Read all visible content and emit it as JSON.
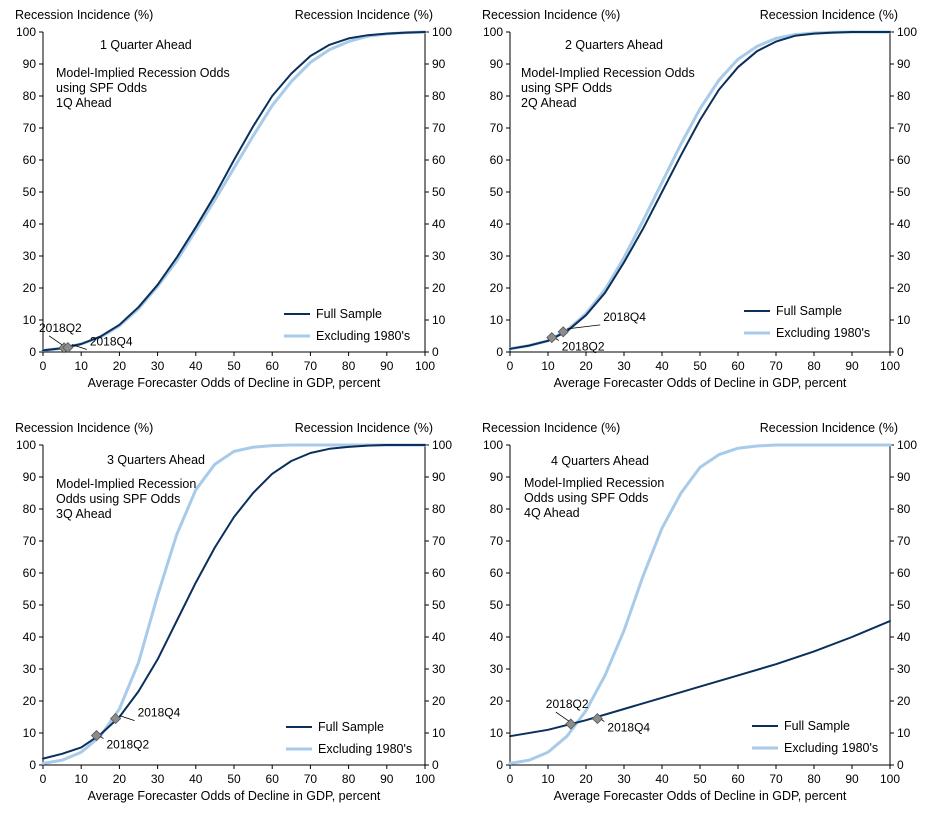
{
  "series_colors": {
    "full": "#0b2f5b",
    "excl": "#a7cbe9",
    "marker": "#8c8c8c"
  },
  "chart_data": [
    {
      "type": "line",
      "panel_title": "1 Quarter Ahead",
      "annotation": [
        "Model-Implied Recession Odds",
        "using SPF Odds",
        "1Q Ahead"
      ],
      "ylabel_left": "Recession Incidence  (%)",
      "ylabel_right": "Recession Incidence  (%)",
      "xlabel": "Average  Forecaster Odds of Decline in GDP, percent",
      "xlim": [
        0,
        100
      ],
      "ylim": [
        0,
        100
      ],
      "xticks": [
        "0",
        "10",
        "20",
        "30",
        "40",
        "50",
        "60",
        "70",
        "80",
        "90",
        "100"
      ],
      "yticks": [
        "0",
        "10",
        "20",
        "30",
        "40",
        "50",
        "60",
        "70",
        "80",
        "90",
        "100"
      ],
      "legend": {
        "position": "lower-right",
        "full": "Full Sample",
        "excl": "Excluding 1980's"
      },
      "series": [
        {
          "name": "Full Sample",
          "key": "full",
          "x": [
            0,
            5,
            10,
            15,
            20,
            25,
            30,
            35,
            40,
            45,
            50,
            55,
            60,
            65,
            70,
            75,
            80,
            85,
            90,
            95,
            100
          ],
          "y": [
            0.5,
            1.2,
            2.5,
            4.8,
            8.5,
            14,
            21,
            29.5,
            39,
            49,
            60,
            70.5,
            80,
            87,
            92.5,
            96,
            98,
            99,
            99.5,
            99.8,
            100
          ]
        },
        {
          "name": "Excluding 1980's",
          "key": "excl",
          "x": [
            0,
            5,
            10,
            15,
            20,
            25,
            30,
            35,
            40,
            45,
            50,
            55,
            60,
            65,
            70,
            75,
            80,
            85,
            90,
            95,
            100
          ],
          "y": [
            0.5,
            1.2,
            2.5,
            4.6,
            8.2,
            13.5,
            20.5,
            28.5,
            38,
            47.5,
            57.5,
            67.5,
            77,
            84.5,
            90.5,
            94.5,
            97,
            98.7,
            99.4,
            99.8,
            100
          ]
        }
      ],
      "markers": [
        {
          "label": "2018Q2",
          "x": 5.5,
          "y": 1.3,
          "label_pos": "upper-left"
        },
        {
          "label": "2018Q4",
          "x": 6.5,
          "y": 1.4,
          "label_pos": "right"
        }
      ]
    },
    {
      "type": "line",
      "panel_title": "2 Quarters  Ahead",
      "annotation": [
        "Model-Implied Recession Odds",
        "using SPF Odds",
        "2Q Ahead"
      ],
      "ylabel_left": "Recession Incidence  (%)",
      "ylabel_right": "Recession Incidence  (%)",
      "xlabel": "Average  Forecaster Odds of Decline in GDP, percent",
      "xlim": [
        0,
        100
      ],
      "ylim": [
        0,
        100
      ],
      "xticks": [
        "0",
        "10",
        "20",
        "30",
        "40",
        "50",
        "60",
        "70",
        "80",
        "90",
        "100"
      ],
      "yticks": [
        "0",
        "10",
        "20",
        "30",
        "40",
        "50",
        "60",
        "70",
        "80",
        "90",
        "100"
      ],
      "legend": {
        "position": "lower-right",
        "full": "Full Sample",
        "excl": "Excluding 1980's"
      },
      "series": [
        {
          "name": "Full Sample",
          "key": "full",
          "x": [
            0,
            5,
            10,
            15,
            20,
            25,
            30,
            35,
            40,
            45,
            50,
            55,
            60,
            65,
            70,
            75,
            80,
            85,
            90,
            95,
            100
          ],
          "y": [
            1,
            2,
            3.5,
            6.5,
            11.5,
            18.5,
            28,
            38.5,
            50,
            61.5,
            72.5,
            82,
            89,
            94,
            97,
            98.8,
            99.5,
            99.8,
            100,
            100,
            100
          ]
        },
        {
          "name": "Excluding 1980's",
          "key": "excl",
          "x": [
            0,
            5,
            10,
            15,
            20,
            25,
            30,
            35,
            40,
            45,
            50,
            55,
            60,
            65,
            70,
            75,
            80,
            85,
            90,
            95,
            100
          ],
          "y": [
            1,
            2,
            3.5,
            6.8,
            12,
            19.5,
            29.5,
            41,
            53,
            65,
            76,
            85,
            91.5,
            95.5,
            98,
            99.2,
            99.7,
            99.9,
            100,
            100,
            100
          ]
        }
      ],
      "markers": [
        {
          "label": "2018Q4",
          "x": 14,
          "y": 6.3,
          "label_pos": "upper-right"
        },
        {
          "label": "2018Q2",
          "x": 11,
          "y": 4.5,
          "label_pos": "lower-right"
        }
      ]
    },
    {
      "type": "line",
      "panel_title": "3 Quarters  Ahead",
      "annotation": [
        "Model-Implied Recession",
        "Odds using SPF Odds",
        "3Q Ahead"
      ],
      "ylabel_left": "Recession Incidence  (%)",
      "ylabel_right": "Recession Incidence  (%)",
      "xlabel": "Average  Forecaster Odds of Decline in GDP, percent",
      "xlim": [
        0,
        100
      ],
      "ylim": [
        0,
        100
      ],
      "xticks": [
        "0",
        "10",
        "20",
        "30",
        "40",
        "50",
        "60",
        "70",
        "80",
        "90",
        "100"
      ],
      "yticks": [
        "0",
        "10",
        "20",
        "30",
        "40",
        "50",
        "60",
        "70",
        "80",
        "90",
        "100"
      ],
      "legend": {
        "position": "lower-right",
        "full": "Full Sample",
        "excl": "Excluding 1980's"
      },
      "series": [
        {
          "name": "Full Sample",
          "key": "full",
          "x": [
            0,
            5,
            10,
            15,
            20,
            25,
            30,
            35,
            40,
            45,
            50,
            55,
            60,
            65,
            70,
            75,
            80,
            85,
            90,
            95,
            100
          ],
          "y": [
            2,
            3.5,
            5.5,
            9.5,
            15,
            23,
            33,
            45,
            57,
            68,
            77.5,
            85,
            91,
            95,
            97.5,
            98.8,
            99.4,
            99.8,
            100,
            100,
            100
          ]
        },
        {
          "name": "Excluding 1980's",
          "key": "excl",
          "x": [
            0,
            5,
            10,
            15,
            20,
            25,
            30,
            35,
            40,
            45,
            50,
            55,
            60,
            65,
            70,
            75,
            80,
            85,
            90,
            95,
            100
          ],
          "y": [
            0.5,
            1.5,
            4,
            9,
            17.5,
            32,
            53,
            72,
            86,
            94,
            98,
            99.3,
            99.8,
            100,
            100,
            100,
            100,
            100,
            100,
            100,
            100
          ]
        }
      ],
      "markers": [
        {
          "label": "2018Q4",
          "x": 19,
          "y": 14.5,
          "label_pos": "right"
        },
        {
          "label": "2018Q2",
          "x": 14,
          "y": 9.2,
          "label_pos": "lower-right"
        }
      ]
    },
    {
      "type": "line",
      "panel_title": "4 Quarters  Ahead",
      "annotation": [
        "Model-Implied  Recession",
        "Odds using SPF Odds",
        "4Q Ahead"
      ],
      "ylabel_left": "Recession Incidence  (%)",
      "ylabel_right": "Recession Incidence  (%)",
      "xlabel": "Average  Forecaster Odds of Decline in GDP, percent",
      "xlim": [
        0,
        100
      ],
      "ylim": [
        0,
        100
      ],
      "xticks": [
        "0",
        "10",
        "20",
        "30",
        "40",
        "50",
        "60",
        "70",
        "80",
        "90",
        "100"
      ],
      "yticks": [
        "0",
        "10",
        "20",
        "30",
        "40",
        "50",
        "60",
        "70",
        "80",
        "90",
        "100"
      ],
      "legend": {
        "position": "lower-right",
        "full": "Full Sample",
        "excl": "Excluding 1980's"
      },
      "series": [
        {
          "name": "Full Sample",
          "key": "full",
          "x": [
            0,
            10,
            20,
            30,
            40,
            50,
            60,
            70,
            80,
            90,
            100
          ],
          "y": [
            9,
            11,
            14,
            17.5,
            21,
            24.5,
            28,
            31.5,
            35.5,
            40,
            45
          ]
        },
        {
          "name": "Excluding 1980's",
          "key": "excl",
          "x": [
            0,
            5,
            10,
            15,
            20,
            25,
            30,
            35,
            40,
            45,
            50,
            55,
            60,
            65,
            70,
            75,
            80,
            85,
            90,
            95,
            100
          ],
          "y": [
            0.5,
            1.5,
            4,
            9,
            17,
            28,
            42,
            59,
            74,
            85,
            93,
            97,
            99,
            99.7,
            100,
            100,
            100,
            100,
            100,
            100,
            100
          ]
        }
      ],
      "markers": [
        {
          "label": "2018Q2",
          "x": 16,
          "y": 12.8,
          "label_pos": "upper-left"
        },
        {
          "label": "2018Q4",
          "x": 23,
          "y": 14.5,
          "label_pos": "lower-right"
        }
      ]
    }
  ]
}
